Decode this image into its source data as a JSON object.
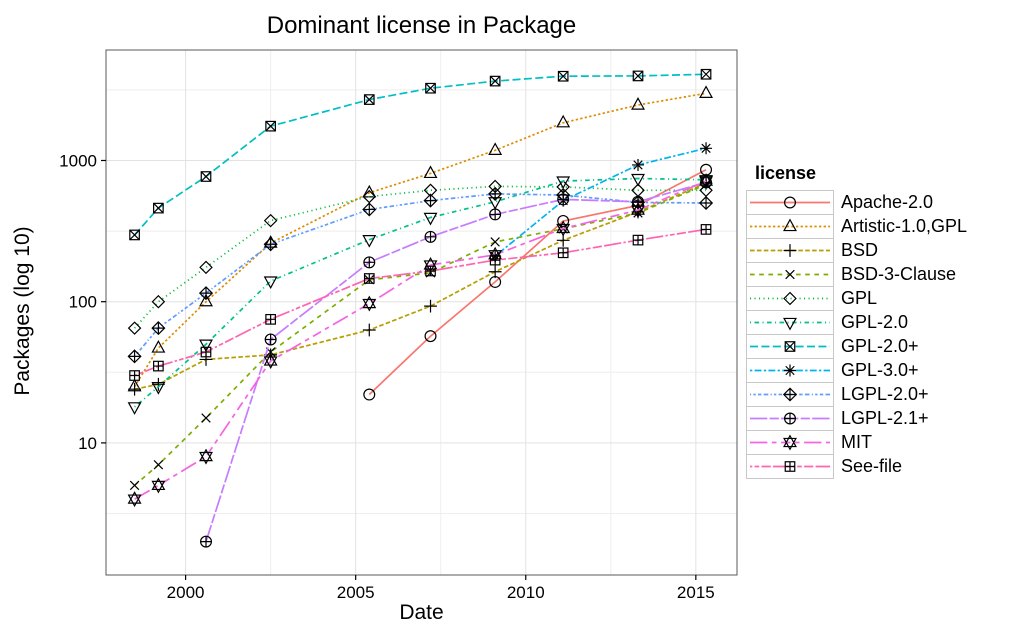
{
  "title": "Dominant license in Package",
  "axes": {
    "x_label": "Date",
    "y_label": "Packages (log 10)",
    "x_tick_labels": [
      "2000",
      "2005",
      "2010",
      "2015"
    ],
    "y_tick_labels": [
      "10",
      "100",
      "1000"
    ]
  },
  "legend": {
    "title": "license"
  },
  "colors": {
    "grid_major": "#e2e2e2",
    "grid_minor": "#eeeeee",
    "panel_border": "#595959",
    "marker": "#000000",
    "tick": "#000000"
  },
  "chart_data": {
    "type": "line",
    "title": "Dominant license in Package",
    "xlabel": "Date",
    "ylabel": "Packages (log 10)",
    "y_scale": "log10",
    "grid": true,
    "legend_position": "right",
    "x_range": [
      1997.66,
      2016.21
    ],
    "y_range": [
      1.16,
      6060
    ],
    "x_major_ticks": [
      2000,
      2005,
      2010,
      2015
    ],
    "y_major_ticks": [
      10,
      100,
      1000
    ],
    "x_minor_gridlines": [
      2002.5,
      2007.5,
      2012.5
    ],
    "y_minor_gridlines": [
      3.162,
      31.62,
      316.2,
      3162
    ],
    "x": [
      1998.5,
      1999.2,
      2000.6,
      2002.5,
      2005.4,
      2007.2,
      2009.1,
      2011.1,
      2013.3,
      2015.3
    ],
    "series": [
      {
        "name": "Apache-2.0",
        "color": "#F8766D",
        "linetype": "solid",
        "marker": "circle-open",
        "values": [
          null,
          null,
          null,
          null,
          22,
          57,
          138,
          373,
          480,
          860
        ]
      },
      {
        "name": "Artistic-1.0,GPL",
        "color": "#DE8C00",
        "linetype": "22",
        "marker": "triangle-up-open",
        "values": [
          25,
          47,
          100,
          260,
          590,
          810,
          1180,
          1850,
          2470,
          2990
        ]
      },
      {
        "name": "BSD",
        "color": "#B79F00",
        "linetype": "42",
        "marker": "plus",
        "values": [
          24,
          26,
          39,
          42,
          63,
          93,
          163,
          272,
          432,
          690
        ]
      },
      {
        "name": "BSD-3-Clause",
        "color": "#7CAE00",
        "linetype": "44",
        "marker": "cross",
        "values": [
          5,
          7,
          15,
          44,
          143,
          160,
          265,
          328,
          425,
          675
        ]
      },
      {
        "name": "GPL",
        "color": "#00BA38",
        "linetype": "13",
        "marker": "diamond-open",
        "values": [
          65,
          100,
          175,
          375,
          555,
          615,
          655,
          650,
          615,
          615
        ]
      },
      {
        "name": "GPL-2.0",
        "color": "#00C08B",
        "linetype": "1343",
        "marker": "triangle-down-open",
        "values": [
          18,
          25,
          50,
          140,
          275,
          395,
          510,
          715,
          745,
          730
        ]
      },
      {
        "name": "GPL-2.0+",
        "color": "#00BFC4",
        "linetype": "73",
        "marker": "square-cross",
        "values": [
          297,
          460,
          770,
          1750,
          2700,
          3250,
          3650,
          3950,
          3970,
          4080
        ]
      },
      {
        "name": "GPL-3.0+",
        "color": "#00B4F0",
        "linetype": "2262",
        "marker": "asterisk",
        "values": [
          null,
          null,
          null,
          null,
          null,
          null,
          210,
          520,
          930,
          1220
        ]
      },
      {
        "name": "LGPL-2.0+",
        "color": "#619CFF",
        "linetype": "12223242",
        "marker": "diamond-plus",
        "values": [
          41,
          65,
          115,
          255,
          450,
          520,
          580,
          570,
          505,
          500
        ]
      },
      {
        "name": "LGPL-2.1+",
        "color": "#C77CFF",
        "linetype": "F282",
        "marker": "circle-plus",
        "values": [
          null,
          null,
          2,
          54,
          190,
          288,
          415,
          530,
          510,
          700
        ]
      },
      {
        "name": "MIT",
        "color": "#F564E3",
        "linetype": "F4448444",
        "marker": "star-of-david",
        "values": [
          4,
          5,
          8,
          38,
          97,
          182,
          215,
          330,
          445,
          715
        ]
      },
      {
        "name": "See-file",
        "color": "#FF64B0",
        "linetype": "224282F2",
        "marker": "square-plus",
        "values": [
          30,
          35,
          44,
          75,
          146,
          165,
          197,
          222,
          273,
          325
        ]
      }
    ]
  }
}
